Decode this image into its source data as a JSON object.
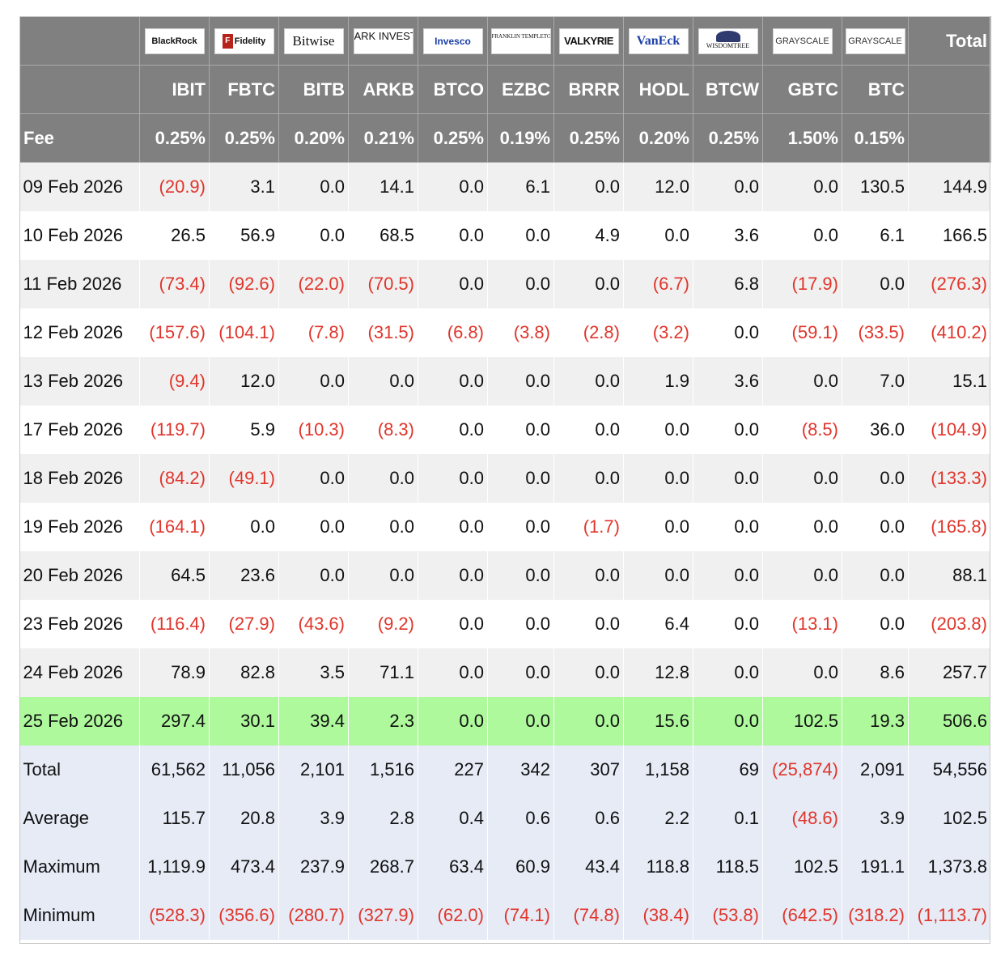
{
  "header": {
    "total_label": "Total",
    "fee_label": "Fee",
    "logos": [
      {
        "name": "blackrock-logo",
        "text": "BlackRock"
      },
      {
        "name": "fidelity-logo",
        "text": "Fidelity"
      },
      {
        "name": "bitwise-logo",
        "text": "Bitwise"
      },
      {
        "name": "ark-logo",
        "text": "ARK INVEST"
      },
      {
        "name": "invesco-logo",
        "text": "Invesco"
      },
      {
        "name": "franklin-templeton-logo",
        "text": "FRANKLIN TEMPLETON"
      },
      {
        "name": "valkyrie-logo",
        "text": "VALKYRIE"
      },
      {
        "name": "vaneck-logo",
        "text": "VanEck"
      },
      {
        "name": "wisdomtree-logo",
        "text": "WISDOMTREE"
      },
      {
        "name": "grayscale-logo",
        "text": "GRAYSCALE"
      },
      {
        "name": "grayscale-logo",
        "text": "GRAYSCALE"
      }
    ],
    "tickers": [
      "IBIT",
      "FBTC",
      "BITB",
      "ARKB",
      "BTCO",
      "EZBC",
      "BRRR",
      "HODL",
      "BTCW",
      "GBTC",
      "BTC"
    ],
    "fees": [
      "0.25%",
      "0.25%",
      "0.20%",
      "0.21%",
      "0.25%",
      "0.19%",
      "0.25%",
      "0.20%",
      "0.25%",
      "1.50%",
      "0.15%"
    ]
  },
  "rows": [
    {
      "date": "09 Feb 2026",
      "values": [
        "(20.9)",
        "3.1",
        "0.0",
        "14.1",
        "0.0",
        "6.1",
        "0.0",
        "12.0",
        "0.0",
        "0.0",
        "130.5",
        "144.9"
      ]
    },
    {
      "date": "10 Feb 2026",
      "values": [
        "26.5",
        "56.9",
        "0.0",
        "68.5",
        "0.0",
        "0.0",
        "4.9",
        "0.0",
        "3.6",
        "0.0",
        "6.1",
        "166.5"
      ]
    },
    {
      "date": "11 Feb 2026",
      "values": [
        "(73.4)",
        "(92.6)",
        "(22.0)",
        "(70.5)",
        "0.0",
        "0.0",
        "0.0",
        "(6.7)",
        "6.8",
        "(17.9)",
        "0.0",
        "(276.3)"
      ]
    },
    {
      "date": "12 Feb 2026",
      "values": [
        "(157.6)",
        "(104.1)",
        "(7.8)",
        "(31.5)",
        "(6.8)",
        "(3.8)",
        "(2.8)",
        "(3.2)",
        "0.0",
        "(59.1)",
        "(33.5)",
        "(410.2)"
      ]
    },
    {
      "date": "13 Feb 2026",
      "values": [
        "(9.4)",
        "12.0",
        "0.0",
        "0.0",
        "0.0",
        "0.0",
        "0.0",
        "1.9",
        "3.6",
        "0.0",
        "7.0",
        "15.1"
      ]
    },
    {
      "date": "17 Feb 2026",
      "values": [
        "(119.7)",
        "5.9",
        "(10.3)",
        "(8.3)",
        "0.0",
        "0.0",
        "0.0",
        "0.0",
        "0.0",
        "(8.5)",
        "36.0",
        "(104.9)"
      ]
    },
    {
      "date": "18 Feb 2026",
      "values": [
        "(84.2)",
        "(49.1)",
        "0.0",
        "0.0",
        "0.0",
        "0.0",
        "0.0",
        "0.0",
        "0.0",
        "0.0",
        "0.0",
        "(133.3)"
      ]
    },
    {
      "date": "19 Feb 2026",
      "values": [
        "(164.1)",
        "0.0",
        "0.0",
        "0.0",
        "0.0",
        "0.0",
        "(1.7)",
        "0.0",
        "0.0",
        "0.0",
        "0.0",
        "(165.8)"
      ]
    },
    {
      "date": "20 Feb 2026",
      "values": [
        "64.5",
        "23.6",
        "0.0",
        "0.0",
        "0.0",
        "0.0",
        "0.0",
        "0.0",
        "0.0",
        "0.0",
        "0.0",
        "88.1"
      ]
    },
    {
      "date": "23 Feb 2026",
      "values": [
        "(116.4)",
        "(27.9)",
        "(43.6)",
        "(9.2)",
        "0.0",
        "0.0",
        "0.0",
        "6.4",
        "0.0",
        "(13.1)",
        "0.0",
        "(203.8)"
      ]
    },
    {
      "date": "24 Feb 2026",
      "values": [
        "78.9",
        "82.8",
        "3.5",
        "71.1",
        "0.0",
        "0.0",
        "0.0",
        "12.8",
        "0.0",
        "0.0",
        "8.6",
        "257.7"
      ]
    },
    {
      "date": "25 Feb 2026",
      "highlight": true,
      "values": [
        "297.4",
        "30.1",
        "39.4",
        "2.3",
        "0.0",
        "0.0",
        "0.0",
        "15.6",
        "0.0",
        "102.5",
        "19.3",
        "506.6"
      ]
    }
  ],
  "stats": [
    {
      "label": "Total",
      "values": [
        "61,562",
        "11,056",
        "2,101",
        "1,516",
        "227",
        "342",
        "307",
        "1,158",
        "69",
        "(25,874)",
        "2,091",
        "54,556"
      ]
    },
    {
      "label": "Average",
      "values": [
        "115.7",
        "20.8",
        "3.9",
        "2.8",
        "0.4",
        "0.6",
        "0.6",
        "2.2",
        "0.1",
        "(48.6)",
        "3.9",
        "102.5"
      ]
    },
    {
      "label": "Maximum",
      "values": [
        "1,119.9",
        "473.4",
        "237.9",
        "268.7",
        "63.4",
        "60.9",
        "43.4",
        "118.8",
        "118.5",
        "102.5",
        "191.1",
        "1,373.8"
      ]
    },
    {
      "label": "Minimum",
      "values": [
        "(528.3)",
        "(356.6)",
        "(280.7)",
        "(327.9)",
        "(62.0)",
        "(74.1)",
        "(74.8)",
        "(38.4)",
        "(53.8)",
        "(642.5)",
        "(318.2)",
        "(1,113.7)"
      ]
    }
  ],
  "colors": {
    "header_bg": "#808080",
    "negative": "#e0352b",
    "highlight_row": "#adf99b",
    "stats_bg": "#e6ebf6",
    "stripe": "#f0f0f0"
  }
}
